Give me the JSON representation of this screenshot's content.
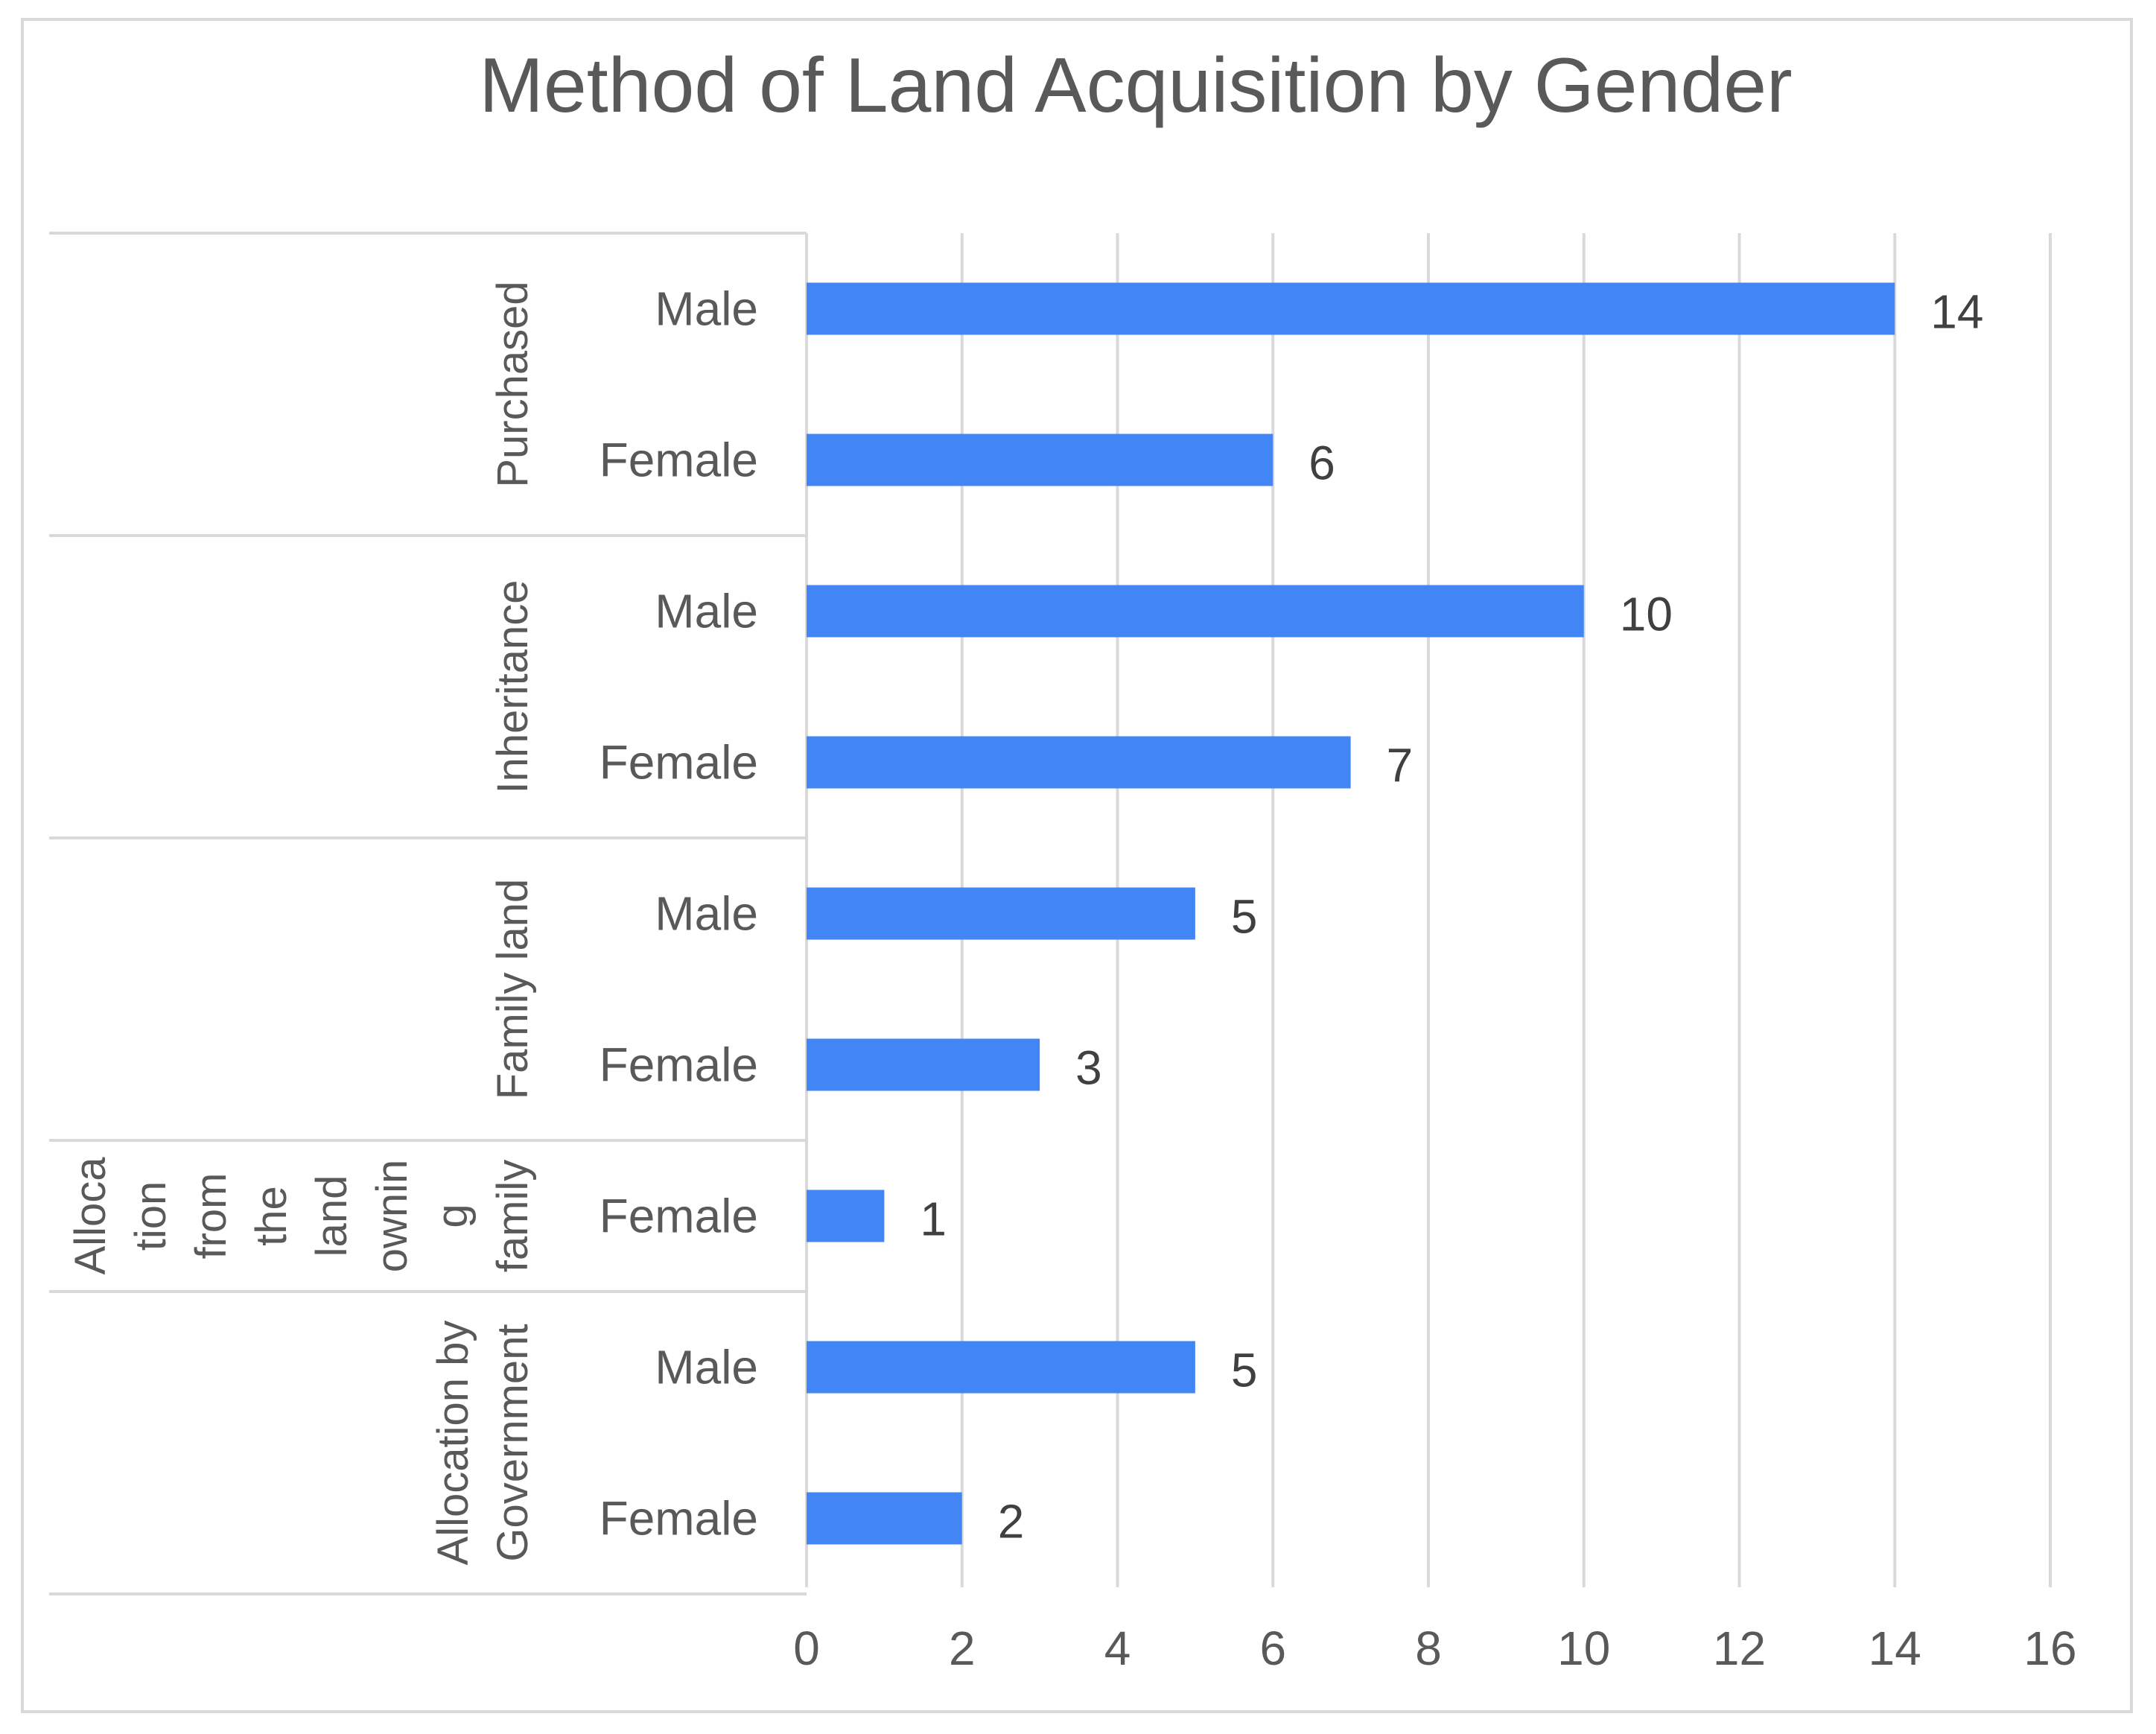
{
  "chart_data": {
    "type": "bar",
    "orientation": "horizontal",
    "title": "Method of Land Acquisition by Gender",
    "xlim": [
      0,
      16
    ],
    "x_ticks": [
      "0",
      "2",
      "4",
      "6",
      "8",
      "10",
      "12",
      "14",
      "16"
    ],
    "grid": true,
    "bar_color": "#4285f4",
    "groups": [
      {
        "name": "Purchased",
        "name_lines": [
          "Purchased"
        ],
        "bars": [
          {
            "category": "Male",
            "value": 14,
            "label": "14"
          },
          {
            "category": "Female",
            "value": 6,
            "label": "6"
          }
        ]
      },
      {
        "name": "Inheritance",
        "name_lines": [
          "Inheritance"
        ],
        "bars": [
          {
            "category": "Male",
            "value": 10,
            "label": "10"
          },
          {
            "category": "Female",
            "value": 7,
            "label": "7"
          }
        ]
      },
      {
        "name": "Family land",
        "name_lines": [
          "Family land"
        ],
        "bars": [
          {
            "category": "Male",
            "value": 5,
            "label": "5"
          },
          {
            "category": "Female",
            "value": 3,
            "label": "3"
          }
        ]
      },
      {
        "name": "Allocation from the land owning family",
        "name_lines": [
          "Alloca",
          "tion",
          "from",
          "the",
          "land",
          "ownin",
          "g",
          "family"
        ],
        "bars": [
          {
            "category": "Female",
            "value": 1,
            "label": "1"
          }
        ]
      },
      {
        "name": "Allocation by Government",
        "name_lines": [
          "Allocation by",
          "Government"
        ],
        "bars": [
          {
            "category": "Male",
            "value": 5,
            "label": "5"
          },
          {
            "category": "Female",
            "value": 2,
            "label": "2"
          }
        ]
      }
    ]
  }
}
